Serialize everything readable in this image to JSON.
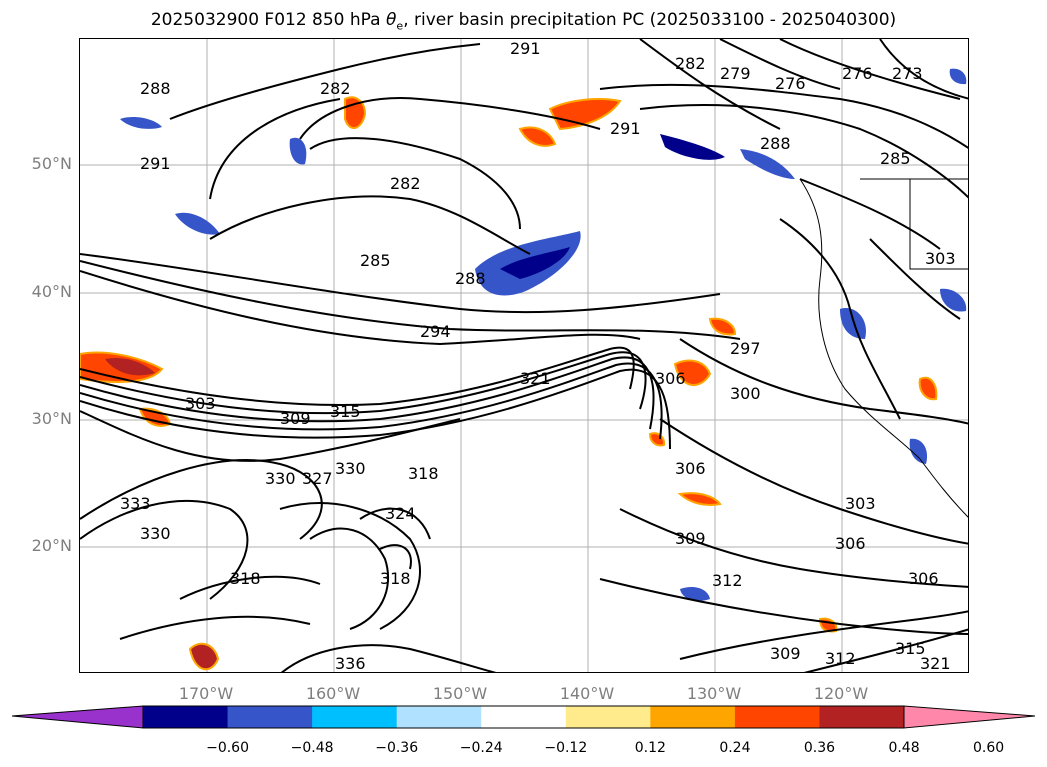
{
  "title_main": "2025032900 F012 850 hPa ",
  "title_theta": "θ",
  "title_sub": "e",
  "title_rest": ", river basin precipitation PC (2025033100 - 2025040300)",
  "lat_labels": [
    "50°N",
    "40°N",
    "30°N",
    "20°N"
  ],
  "lon_labels": [
    "170°W",
    "160°W",
    "150°W",
    "140°W",
    "130°W",
    "120°W"
  ],
  "contour_labels": [
    "291",
    "282",
    "279",
    "276",
    "276",
    "273",
    "282",
    "291",
    "288",
    "285",
    "282",
    "285",
    "288",
    "294",
    "297",
    "303",
    "300",
    "306",
    "309",
    "315",
    "321",
    "330",
    "327",
    "318",
    "324",
    "318",
    "330",
    "333",
    "336",
    "330",
    "318",
    "306",
    "303",
    "309",
    "306",
    "312",
    "309",
    "312",
    "315",
    "321",
    "303",
    "288",
    "291",
    "306"
  ],
  "colorbar": {
    "colors": [
      "#9932cc",
      "#00008b",
      "#3655c8",
      "#00bfff",
      "#b0e2ff",
      "#ffffff",
      "#ffea8c",
      "#ffa500",
      "#ff4500",
      "#b22222",
      "#ff88aa"
    ],
    "tick_labels": [
      "−0.60",
      "−0.48",
      "−0.36",
      "−0.24",
      "−0.12",
      "0.12",
      "0.24",
      "0.36",
      "0.48",
      "0.60"
    ]
  }
}
